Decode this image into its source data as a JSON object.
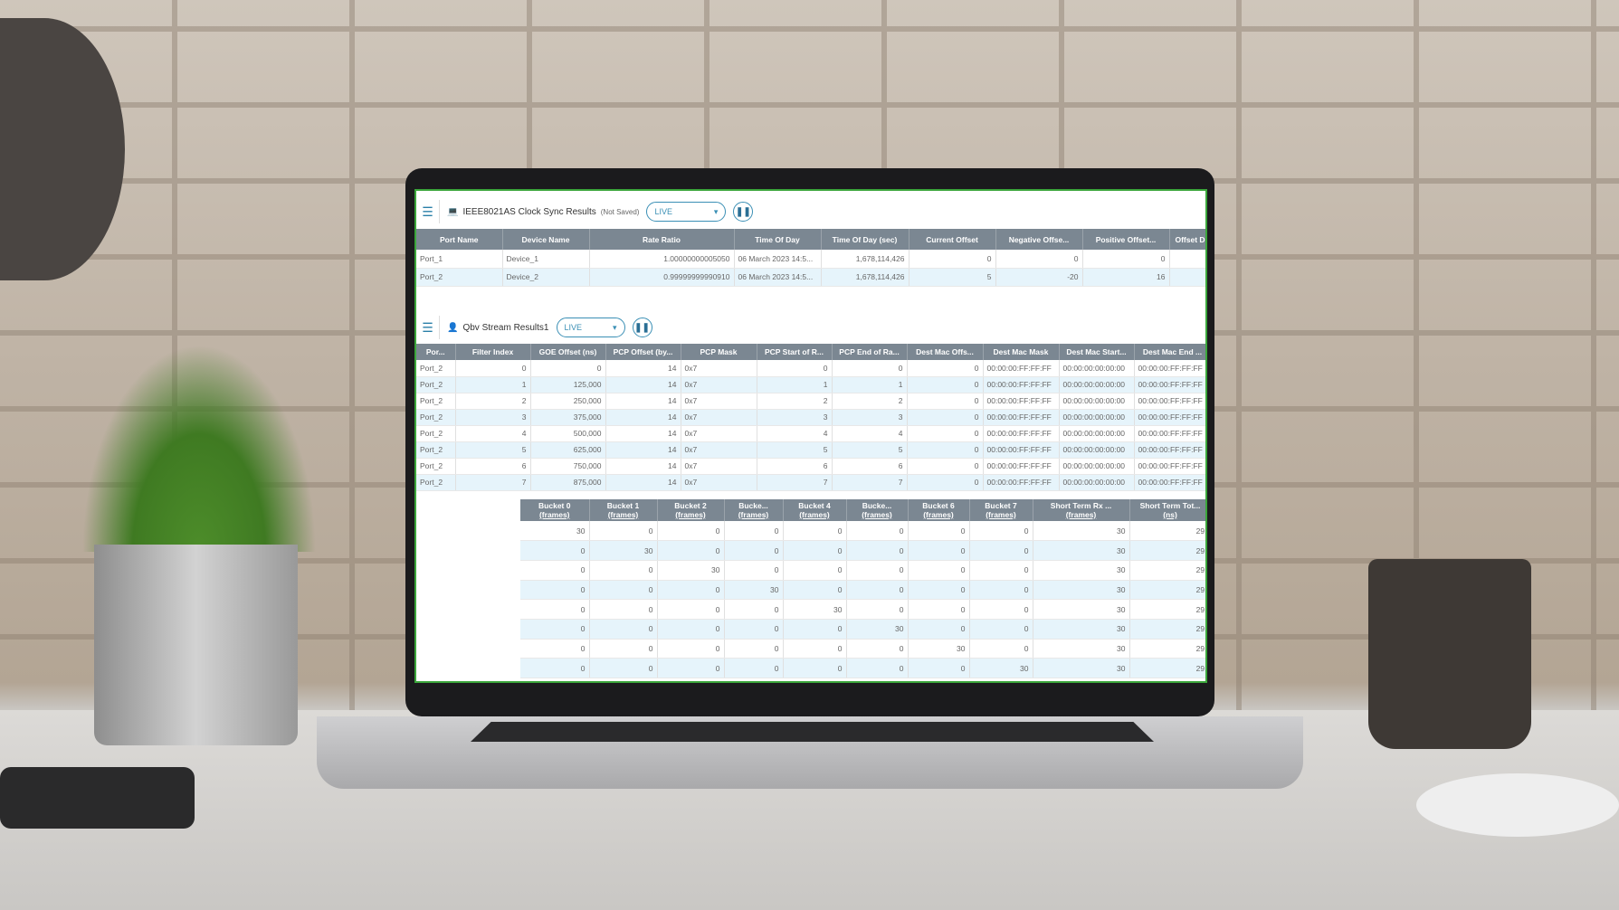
{
  "clock_panel": {
    "title": "IEEE8021AS Clock Sync Results",
    "subtitle": "(Not Saved)",
    "mode": "LIVE",
    "columns": [
      "Port Name",
      "Device Name",
      "Rate Ratio",
      "Time Of Day",
      "Time Of Day (sec)",
      "Current Offset",
      "Negative Offse...",
      "Positive Offset...",
      "Offset D"
    ],
    "rows": [
      [
        "Port_1",
        "Device_1",
        "1.00000000005050",
        "06 March 2023 14:5...",
        "1,678,114,426",
        "0",
        "0",
        "0",
        ""
      ],
      [
        "Port_2",
        "Device_2",
        "0.99999999990910",
        "06 March 2023 14:5...",
        "1,678,114,426",
        "5",
        "-20",
        "16",
        ""
      ]
    ]
  },
  "qbv_panel": {
    "title": "Qbv Stream Results1",
    "mode": "LIVE",
    "columns": [
      "Por...",
      "Filter Index",
      "GOE Offset (ns)",
      "PCP Offset (by...",
      "PCP Mask",
      "PCP Start of R...",
      "PCP End of Ra...",
      "Dest Mac Offs...",
      "Dest Mac Mask",
      "Dest Mac Start...",
      "Dest Mac End ..."
    ],
    "rows": [
      [
        "Port_2",
        "0",
        "0",
        "14",
        "0x7",
        "0",
        "0",
        "0",
        "00:00:00:FF:FF:FF",
        "00:00:00:00:00:00",
        "00:00:00:FF:FF:FF"
      ],
      [
        "Port_2",
        "1",
        "125,000",
        "14",
        "0x7",
        "1",
        "1",
        "0",
        "00:00:00:FF:FF:FF",
        "00:00:00:00:00:00",
        "00:00:00:FF:FF:FF"
      ],
      [
        "Port_2",
        "2",
        "250,000",
        "14",
        "0x7",
        "2",
        "2",
        "0",
        "00:00:00:FF:FF:FF",
        "00:00:00:00:00:00",
        "00:00:00:FF:FF:FF"
      ],
      [
        "Port_2",
        "3",
        "375,000",
        "14",
        "0x7",
        "3",
        "3",
        "0",
        "00:00:00:FF:FF:FF",
        "00:00:00:00:00:00",
        "00:00:00:FF:FF:FF"
      ],
      [
        "Port_2",
        "4",
        "500,000",
        "14",
        "0x7",
        "4",
        "4",
        "0",
        "00:00:00:FF:FF:FF",
        "00:00:00:00:00:00",
        "00:00:00:FF:FF:FF"
      ],
      [
        "Port_2",
        "5",
        "625,000",
        "14",
        "0x7",
        "5",
        "5",
        "0",
        "00:00:00:FF:FF:FF",
        "00:00:00:00:00:00",
        "00:00:00:FF:FF:FF"
      ],
      [
        "Port_2",
        "6",
        "750,000",
        "14",
        "0x7",
        "6",
        "6",
        "0",
        "00:00:00:FF:FF:FF",
        "00:00:00:00:00:00",
        "00:00:00:FF:FF:FF"
      ],
      [
        "Port_2",
        "7",
        "875,000",
        "14",
        "0x7",
        "7",
        "7",
        "0",
        "00:00:00:FF:FF:FF",
        "00:00:00:00:00:00",
        "00:00:00:FF:FF:FF"
      ]
    ]
  },
  "bucket_table": {
    "columns": [
      [
        "Bucket 0",
        "(frames)"
      ],
      [
        "Bucket 1",
        "(frames)"
      ],
      [
        "Bucket 2",
        "(frames)"
      ],
      [
        "Bucke...",
        "(frames)"
      ],
      [
        "Bucket 4",
        "(frames)"
      ],
      [
        "Bucke...",
        "(frames)"
      ],
      [
        "Bucket 6",
        "(frames)"
      ],
      [
        "Bucket 7",
        "(frames)"
      ],
      [
        "Short Term Rx ...",
        "(frames)"
      ],
      [
        "Short Term Tot...",
        "(ns)"
      ]
    ],
    "rows": [
      [
        "30",
        "0",
        "0",
        "0",
        "0",
        "0",
        "0",
        "0",
        "30",
        "29,"
      ],
      [
        "0",
        "30",
        "0",
        "0",
        "0",
        "0",
        "0",
        "0",
        "30",
        "29,"
      ],
      [
        "0",
        "0",
        "30",
        "0",
        "0",
        "0",
        "0",
        "0",
        "30",
        "29,"
      ],
      [
        "0",
        "0",
        "0",
        "30",
        "0",
        "0",
        "0",
        "0",
        "30",
        "29,"
      ],
      [
        "0",
        "0",
        "0",
        "0",
        "30",
        "0",
        "0",
        "0",
        "30",
        "29,"
      ],
      [
        "0",
        "0",
        "0",
        "0",
        "0",
        "30",
        "0",
        "0",
        "30",
        "29,"
      ],
      [
        "0",
        "0",
        "0",
        "0",
        "0",
        "0",
        "30",
        "0",
        "30",
        "29,"
      ],
      [
        "0",
        "0",
        "0",
        "0",
        "0",
        "0",
        "0",
        "30",
        "30",
        "29,"
      ]
    ]
  },
  "icons": {
    "menu": "hamburger-icon",
    "clock_panel": "laptop-icon",
    "qbv_panel": "person-icon",
    "dropdown": "caret-down-icon",
    "pause": "pause-icon"
  },
  "colors": {
    "accent": "#3a8fb5",
    "header": "#7b8792",
    "row_alt": "#e6f4fb",
    "frame": "#3ba63b"
  }
}
